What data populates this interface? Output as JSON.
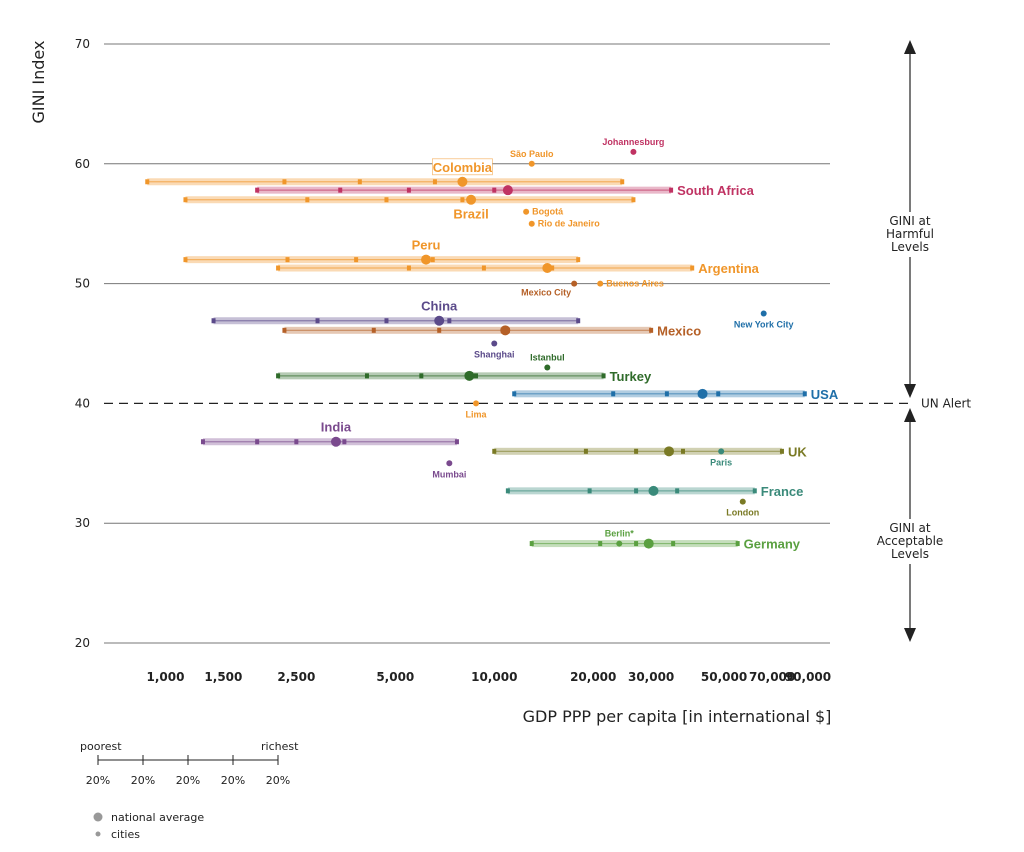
{
  "chart_data": {
    "type": "scatter",
    "title": "",
    "xlabel": "GDP PPP per capita [in international $]",
    "ylabel": "GINI Index",
    "xscale": "log",
    "xlim": [
      650,
      105000
    ],
    "ylim": [
      20,
      70
    ],
    "yticks": [
      20,
      30,
      40,
      50,
      60,
      70
    ],
    "xticks": [
      {
        "value": 1000,
        "label": "1,000"
      },
      {
        "value": 1500,
        "label": "1,500"
      },
      {
        "value": 2500,
        "label": "2,500"
      },
      {
        "value": 5000,
        "label": "5,000"
      },
      {
        "value": 10000,
        "label": "10,000"
      },
      {
        "value": 20000,
        "label": "20,000"
      },
      {
        "value": 30000,
        "label": "30,000"
      },
      {
        "value": 50000,
        "label": "50,000"
      },
      {
        "value": 70000,
        "label": "70,000"
      },
      {
        "value": 90000,
        "label": "90,000"
      }
    ],
    "un_alert": {
      "value": 40,
      "label": "UN Alert"
    },
    "zones": {
      "harmful": [
        "GINI at",
        "Harmful",
        "Levels"
      ],
      "acceptable": [
        "GINI at",
        "Acceptable",
        "Levels"
      ]
    },
    "countries": [
      {
        "name": "Colombia",
        "gini": 58.5,
        "color": "#f0962a",
        "quintiles": [
          880,
          2300,
          3900,
          6600,
          24500
        ],
        "average": 8000,
        "label_anchor": "above",
        "boxed": true
      },
      {
        "name": "South Africa",
        "gini": 57.8,
        "color": "#c03363",
        "quintiles": [
          1900,
          3400,
          5500,
          10000,
          34500
        ],
        "average": 11000,
        "label_anchor": "right"
      },
      {
        "name": "Brazil",
        "gini": 57.0,
        "color": "#f0962a",
        "quintiles": [
          1150,
          2700,
          4700,
          8000,
          26500
        ],
        "average": 8500,
        "label_anchor": "below"
      },
      {
        "name": "Peru",
        "gini": 52.0,
        "color": "#f0962a",
        "quintiles": [
          1150,
          2350,
          3800,
          6500,
          18000
        ],
        "average": 6200,
        "label_anchor": "above"
      },
      {
        "name": "Argentina",
        "gini": 51.3,
        "color": "#f0962a",
        "quintiles": [
          2200,
          5500,
          9300,
          15000,
          40000
        ],
        "average": 14500,
        "label_anchor": "right"
      },
      {
        "name": "China",
        "gini": 46.9,
        "color": "#5b4a8a",
        "quintiles": [
          1400,
          2900,
          4700,
          7300,
          18000
        ],
        "average": 6800,
        "label_anchor": "above"
      },
      {
        "name": "Mexico",
        "gini": 46.1,
        "color": "#b56027",
        "quintiles": [
          2300,
          4300,
          6800,
          11000,
          30000
        ],
        "average": 10800,
        "label_anchor": "right"
      },
      {
        "name": "Turkey",
        "gini": 42.3,
        "color": "#2f6b2a",
        "quintiles": [
          2200,
          4100,
          6000,
          8800,
          21500
        ],
        "average": 8400,
        "label_anchor": "right"
      },
      {
        "name": "USA",
        "gini": 40.8,
        "color": "#1f6fa8",
        "quintiles": [
          11500,
          23000,
          33500,
          48000,
          88000
        ],
        "average": 43000,
        "label_anchor": "right"
      },
      {
        "name": "India",
        "gini": 36.8,
        "color": "#7a4a8e",
        "quintiles": [
          1300,
          1900,
          2500,
          3500,
          7700
        ],
        "average": 3300,
        "label_anchor": "above"
      },
      {
        "name": "UK",
        "gini": 36.0,
        "color": "#7a7a25",
        "quintiles": [
          10000,
          19000,
          27000,
          37500,
          75000
        ],
        "average": 34000,
        "label_anchor": "right"
      },
      {
        "name": "France",
        "gini": 32.7,
        "color": "#3a8a7a",
        "quintiles": [
          11000,
          19500,
          27000,
          36000,
          62000
        ],
        "average": 30500,
        "label_anchor": "right"
      },
      {
        "name": "Germany",
        "gini": 28.3,
        "color": "#5aa040",
        "quintiles": [
          13000,
          21000,
          27000,
          35000,
          55000
        ],
        "average": 29500,
        "label_anchor": "right"
      }
    ],
    "cities": [
      {
        "name": "Johannesburg",
        "gdp": 26500,
        "gini": 61.0,
        "color": "#c03363",
        "anchor": "above"
      },
      {
        "name": "São Paulo",
        "gdp": 13000,
        "gini": 60.0,
        "color": "#f0962a",
        "anchor": "above"
      },
      {
        "name": "Bogotá",
        "gdp": 12500,
        "gini": 56.0,
        "color": "#f0962a",
        "anchor": "right"
      },
      {
        "name": "Rio de Janeiro",
        "gdp": 13000,
        "gini": 55.0,
        "color": "#f0962a",
        "anchor": "right"
      },
      {
        "name": "Buenos Aires",
        "gdp": 21000,
        "gini": 50.0,
        "color": "#f0962a",
        "anchor": "right"
      },
      {
        "name": "Mexico City",
        "gdp": 17500,
        "gini": 50.0,
        "color": "#b56027",
        "anchor": "below-left"
      },
      {
        "name": "New York City",
        "gdp": 66000,
        "gini": 47.5,
        "color": "#1f6fa8",
        "anchor": "below"
      },
      {
        "name": "Shanghai",
        "gdp": 10000,
        "gini": 45.0,
        "color": "#5b4a8a",
        "anchor": "below"
      },
      {
        "name": "Istanbul",
        "gdp": 14500,
        "gini": 43.0,
        "color": "#2f6b2a",
        "anchor": "above"
      },
      {
        "name": "Lima",
        "gdp": 8800,
        "gini": 40.0,
        "color": "#f0962a",
        "anchor": "below"
      },
      {
        "name": "Mumbai",
        "gdp": 7300,
        "gini": 35.0,
        "color": "#7a4a8e",
        "anchor": "below"
      },
      {
        "name": "Paris",
        "gdp": 49000,
        "gini": 36.0,
        "color": "#3a8a7a",
        "anchor": "below"
      },
      {
        "name": "London",
        "gdp": 57000,
        "gini": 31.8,
        "color": "#7a7a25",
        "anchor": "below"
      },
      {
        "name": "Berlin*",
        "gdp": 24000,
        "gini": 28.3,
        "color": "#5aa040",
        "anchor": "above"
      }
    ],
    "legend": {
      "scale_left": "poorest",
      "scale_right": "richest",
      "quintile_labels": [
        "20%",
        "20%",
        "20%",
        "20%",
        "20%"
      ],
      "national_average": "national average",
      "cities": "cities",
      "marker_color": "#999999"
    }
  }
}
